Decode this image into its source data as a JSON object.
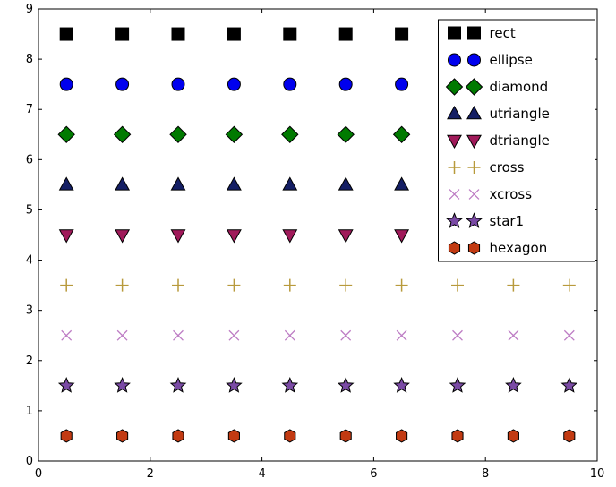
{
  "figure": {
    "background": "#ffffff",
    "border_color": "#000000"
  },
  "chart_data": {
    "type": "scatter",
    "title": "",
    "xlabel": "",
    "ylabel": "",
    "xlim": [
      0,
      10
    ],
    "ylim": [
      0,
      9
    ],
    "xticks": [
      "0",
      "2",
      "4",
      "6",
      "8",
      "10"
    ],
    "xtick_values": [
      0,
      2,
      4,
      6,
      8,
      10
    ],
    "yticks": [
      "0",
      "1",
      "2",
      "3",
      "4",
      "5",
      "6",
      "7",
      "8",
      "9"
    ],
    "ytick_values": [
      0,
      1,
      2,
      3,
      4,
      5,
      6,
      7,
      8,
      9
    ],
    "grid": false,
    "x": [
      0.5,
      1.5,
      2.5,
      3.5,
      4.5,
      5.5,
      6.5,
      7.5,
      8.5,
      9.5
    ],
    "series": [
      {
        "name": "rect",
        "y": 8.5,
        "marker": "square",
        "color": "#000000",
        "edge": "#000000",
        "size": 7
      },
      {
        "name": "ellipse",
        "y": 7.5,
        "marker": "circle",
        "color": "#0000ee",
        "edge": "#000000",
        "size": 7
      },
      {
        "name": "diamond",
        "y": 6.5,
        "marker": "diamond",
        "color": "#007a00",
        "edge": "#000000",
        "size": 9
      },
      {
        "name": "utriangle",
        "y": 5.5,
        "marker": "triangle-up",
        "color": "#141e64",
        "edge": "#000000",
        "size": 8
      },
      {
        "name": "dtriangle",
        "y": 4.5,
        "marker": "triangle-down",
        "color": "#a01a5a",
        "edge": "#000000",
        "size": 8
      },
      {
        "name": "cross",
        "y": 3.5,
        "marker": "plus",
        "color": "#b89a3c",
        "edge": "#b89a3c",
        "size": 7
      },
      {
        "name": "xcross",
        "y": 2.5,
        "marker": "x",
        "color": "#bd7cc4",
        "edge": "#bd7cc4",
        "size": 7
      },
      {
        "name": "star1",
        "y": 1.5,
        "marker": "star",
        "color": "#7a4aa5",
        "edge": "#000000",
        "size": 8.5
      },
      {
        "name": "hexagon",
        "y": 0.5,
        "marker": "hexagon",
        "color": "#c23a12",
        "edge": "#000000",
        "size": 7
      }
    ],
    "legend": {
      "position": "upper-right",
      "points_per_entry": 2,
      "labels": [
        "rect",
        "ellipse",
        "diamond",
        "utriangle",
        "dtriangle",
        "cross",
        "xcross",
        "star1",
        "hexagon"
      ]
    }
  }
}
